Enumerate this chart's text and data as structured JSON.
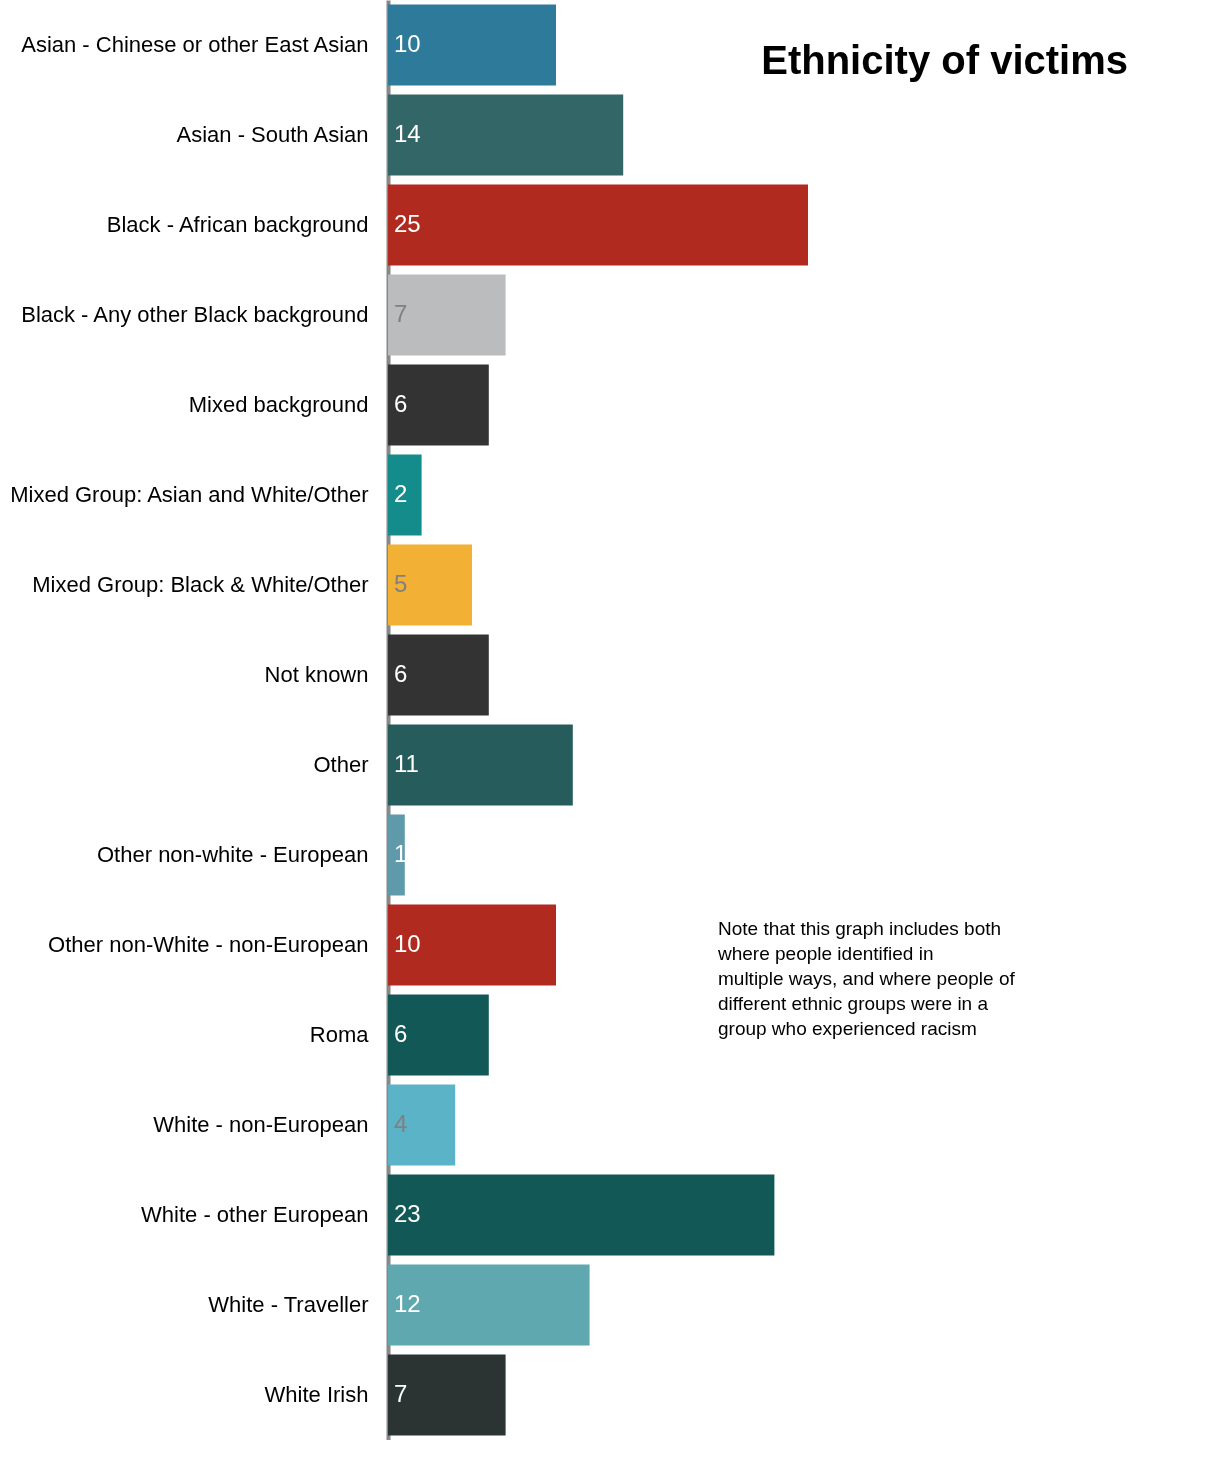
{
  "chart_data": {
    "type": "bar",
    "orientation": "horizontal",
    "title": "Ethnicity of victims",
    "categories": [
      "Asian - Chinese or other East Asian",
      "Asian - South Asian",
      "Black - African background",
      "Black - Any other Black background",
      "Mixed background",
      "Mixed Group: Asian and White/Other",
      "Mixed Group: Black & White/Other",
      "Not known",
      "Other",
      "Other non-white - European",
      "Other non-White - non-European",
      "Roma",
      "White - non-European",
      "White - other European",
      "White - Traveller",
      "White Irish"
    ],
    "values": [
      10,
      14,
      25,
      7,
      6,
      2,
      5,
      6,
      11,
      1,
      10,
      6,
      4,
      23,
      12,
      7
    ],
    "colors": [
      "#2e7a9a",
      "#336666",
      "#b02a20",
      "#bbbcbd",
      "#333333",
      "#148c8c",
      "#f2b035",
      "#333333",
      "#265c5c",
      "#5f9aab",
      "#b02a20",
      "#125856",
      "#5bb3c8",
      "#125856",
      "#5fa8b0",
      "#2c3333"
    ],
    "data_labels": true,
    "annotations": [
      "Note that this graph includes both where people identified in multiple ways, and where people of different ethnic groups were in a group who experienced racism"
    ]
  }
}
